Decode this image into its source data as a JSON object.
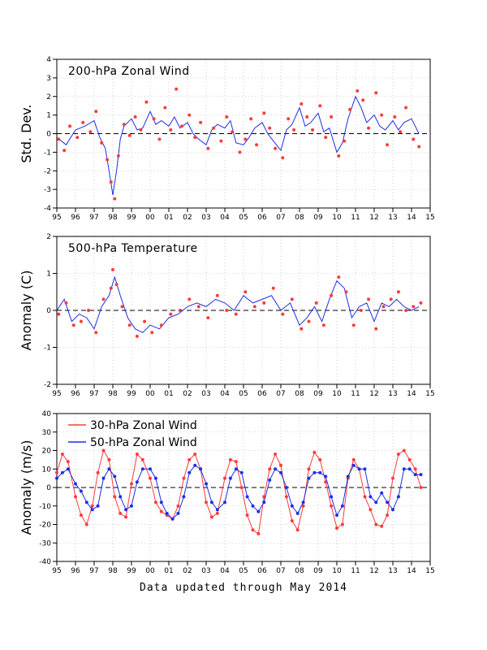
{
  "footer": "Data updated through May 2014",
  "colors": {
    "red": "#ff3b3b",
    "blue": "#1f2ee6",
    "grid": "#aaaaaa",
    "axis": "#000000"
  },
  "chart_data": [
    {
      "type": "line",
      "title": "200-hPa Zonal Wind",
      "ylabel": "Std. Dev.",
      "xlabel": "",
      "xlim": [
        95,
        115
      ],
      "ylim": [
        -4,
        4
      ],
      "xticks": [
        "95",
        "96",
        "97",
        "98",
        "99",
        "00",
        "01",
        "02",
        "03",
        "04",
        "05",
        "06",
        "07",
        "08",
        "09",
        "10",
        "11",
        "12",
        "13",
        "14",
        "15"
      ],
      "yticks": [
        -4,
        -3,
        -2,
        -1,
        0,
        1,
        2,
        3,
        4
      ],
      "grid": true,
      "zero_line": true,
      "series": [
        {
          "kind": "line",
          "color": "#1f2ee6",
          "x": [
            95.0,
            95.5,
            96.0,
            96.5,
            97.0,
            97.3,
            97.6,
            97.8,
            98.0,
            98.2,
            98.4,
            98.6,
            99.0,
            99.3,
            99.6,
            100.0,
            100.3,
            100.6,
            101.0,
            101.3,
            101.6,
            102.0,
            102.3,
            102.6,
            103.0,
            103.3,
            103.6,
            104.0,
            104.3,
            104.6,
            105.0,
            105.3,
            105.6,
            106.0,
            106.3,
            106.6,
            107.0,
            107.3,
            107.6,
            108.0,
            108.3,
            108.6,
            109.0,
            109.3,
            109.6,
            110.0,
            110.3,
            110.6,
            111.0,
            111.3,
            111.6,
            112.0,
            112.3,
            112.6,
            113.0,
            113.3,
            113.6,
            114.0,
            114.4
          ],
          "y": [
            -0.2,
            -0.6,
            0.2,
            0.4,
            0.7,
            -0.2,
            -0.8,
            -2.0,
            -3.3,
            -2.0,
            -0.3,
            0.4,
            0.8,
            0.2,
            0.3,
            1.2,
            0.5,
            0.7,
            0.4,
            0.9,
            0.3,
            0.6,
            0.0,
            -0.3,
            -0.6,
            0.2,
            0.5,
            0.3,
            0.7,
            -0.5,
            -0.6,
            -0.2,
            0.3,
            0.6,
            0.0,
            -0.4,
            -0.9,
            0.2,
            0.5,
            1.4,
            0.4,
            0.6,
            1.1,
            0.1,
            0.3,
            -1.0,
            -0.5,
            0.8,
            2.0,
            1.4,
            0.6,
            1.0,
            0.4,
            0.2,
            0.7,
            0.2,
            0.6,
            0.8,
            0.0
          ]
        },
        {
          "kind": "points",
          "color": "#ff3b3b",
          "x": [
            95.1,
            95.4,
            95.7,
            96.1,
            96.4,
            96.8,
            97.1,
            97.4,
            97.7,
            97.9,
            98.1,
            98.3,
            98.6,
            98.9,
            99.2,
            99.5,
            99.8,
            100.2,
            100.5,
            100.8,
            101.1,
            101.4,
            101.7,
            102.1,
            102.4,
            102.7,
            103.1,
            103.4,
            103.8,
            104.1,
            104.4,
            104.8,
            105.1,
            105.4,
            105.7,
            106.1,
            106.4,
            106.7,
            107.1,
            107.4,
            107.7,
            108.1,
            108.4,
            108.7,
            109.1,
            109.4,
            109.7,
            110.1,
            110.4,
            110.7,
            111.1,
            111.4,
            111.7,
            112.1,
            112.4,
            112.7,
            113.1,
            113.4,
            113.7,
            114.1,
            114.4
          ],
          "y": [
            -0.3,
            -0.9,
            0.4,
            -0.2,
            0.6,
            0.1,
            1.2,
            -0.5,
            -1.4,
            -2.6,
            -3.5,
            -1.2,
            0.5,
            -0.1,
            0.9,
            0.2,
            1.7,
            0.8,
            -0.3,
            1.4,
            0.2,
            2.4,
            0.4,
            1.0,
            -0.2,
            0.6,
            -0.8,
            0.3,
            -0.4,
            0.9,
            0.1,
            -1.0,
            -0.3,
            0.8,
            -0.6,
            1.1,
            0.3,
            -0.8,
            -1.3,
            0.8,
            0.2,
            1.6,
            0.9,
            0.2,
            1.5,
            -0.2,
            0.9,
            -1.2,
            -0.4,
            1.3,
            2.3,
            1.8,
            0.3,
            2.2,
            1.0,
            -0.6,
            0.9,
            0.1,
            1.4,
            -0.3,
            -0.7
          ]
        }
      ]
    },
    {
      "type": "line",
      "title": "500-hPa Temperature",
      "ylabel": "Anomaly (C)",
      "xlabel": "",
      "xlim": [
        95,
        115
      ],
      "ylim": [
        -2,
        2
      ],
      "xticks": [
        "95",
        "96",
        "97",
        "98",
        "99",
        "00",
        "01",
        "02",
        "03",
        "04",
        "05",
        "06",
        "07",
        "08",
        "09",
        "10",
        "11",
        "12",
        "13",
        "14",
        "15"
      ],
      "yticks": [
        -2,
        -1,
        0,
        1,
        2
      ],
      "grid": true,
      "zero_line": true,
      "series": [
        {
          "kind": "line",
          "color": "#1f2ee6",
          "x": [
            95.0,
            95.4,
            95.8,
            96.2,
            96.6,
            97.0,
            97.4,
            97.8,
            98.1,
            98.4,
            98.8,
            99.2,
            99.6,
            100.0,
            100.5,
            101.0,
            101.5,
            102.0,
            102.5,
            103.0,
            103.5,
            104.0,
            104.5,
            105.0,
            105.5,
            106.0,
            106.5,
            107.0,
            107.5,
            108.0,
            108.4,
            108.8,
            109.2,
            109.6,
            110.0,
            110.4,
            110.8,
            111.2,
            111.6,
            112.0,
            112.4,
            112.8,
            113.2,
            113.6,
            114.0,
            114.4
          ],
          "y": [
            0.0,
            0.3,
            -0.3,
            -0.1,
            -0.2,
            -0.5,
            0.1,
            0.4,
            0.9,
            0.4,
            -0.2,
            -0.5,
            -0.6,
            -0.4,
            -0.5,
            -0.2,
            -0.1,
            0.1,
            0.2,
            0.1,
            0.3,
            0.2,
            0.0,
            0.4,
            0.2,
            0.3,
            0.4,
            0.0,
            0.2,
            -0.4,
            -0.2,
            0.1,
            -0.3,
            0.3,
            0.8,
            0.6,
            -0.2,
            0.1,
            0.2,
            -0.3,
            0.2,
            0.1,
            0.3,
            0.1,
            0.0,
            0.1
          ]
        },
        {
          "kind": "points",
          "color": "#ff3b3b",
          "x": [
            95.1,
            95.5,
            95.9,
            96.3,
            96.7,
            97.1,
            97.5,
            97.9,
            98.0,
            98.2,
            98.5,
            98.9,
            99.3,
            99.7,
            100.1,
            100.6,
            101.1,
            101.6,
            102.1,
            102.6,
            103.1,
            103.6,
            104.1,
            104.6,
            105.1,
            105.6,
            106.1,
            106.6,
            107.1,
            107.6,
            108.1,
            108.5,
            108.9,
            109.3,
            109.7,
            110.1,
            110.5,
            110.9,
            111.3,
            111.7,
            112.1,
            112.5,
            112.9,
            113.3,
            113.7,
            114.1,
            114.5
          ],
          "y": [
            -0.1,
            0.2,
            -0.4,
            -0.3,
            0.0,
            -0.6,
            0.3,
            0.6,
            1.1,
            0.7,
            0.1,
            -0.4,
            -0.7,
            -0.3,
            -0.6,
            -0.4,
            -0.1,
            0.0,
            0.3,
            0.1,
            -0.2,
            0.4,
            0.0,
            -0.1,
            0.5,
            0.1,
            0.2,
            0.6,
            -0.1,
            0.3,
            -0.5,
            -0.3,
            0.2,
            -0.4,
            0.4,
            0.9,
            0.5,
            -0.4,
            0.0,
            0.3,
            -0.5,
            0.1,
            0.3,
            0.5,
            0.0,
            0.1,
            0.2
          ]
        }
      ]
    },
    {
      "type": "line",
      "title": "",
      "ylabel": "Anomaly (m/s)",
      "xlabel": "",
      "xlim": [
        95,
        115
      ],
      "ylim": [
        -40,
        40
      ],
      "xticks": [
        "95",
        "96",
        "97",
        "98",
        "99",
        "00",
        "01",
        "02",
        "03",
        "04",
        "05",
        "06",
        "07",
        "08",
        "09",
        "10",
        "11",
        "12",
        "13",
        "14",
        "15"
      ],
      "yticks": [
        -40,
        -30,
        -20,
        -10,
        0,
        10,
        20,
        30,
        40
      ],
      "grid": true,
      "zero_line": true,
      "legend": "top-left",
      "series": [
        {
          "name": "30-hPa Zonal Wind",
          "kind": "line+points",
          "color": "#ff3b3b",
          "x": [
            95.0,
            95.3,
            95.6,
            96.0,
            96.3,
            96.6,
            96.9,
            97.2,
            97.5,
            97.8,
            98.1,
            98.4,
            98.7,
            99.0,
            99.3,
            99.6,
            100.0,
            100.3,
            100.6,
            100.9,
            101.2,
            101.5,
            101.8,
            102.1,
            102.4,
            102.7,
            103.0,
            103.3,
            103.6,
            104.0,
            104.3,
            104.6,
            104.9,
            105.2,
            105.5,
            105.8,
            106.1,
            106.4,
            106.7,
            107.0,
            107.3,
            107.6,
            107.9,
            108.2,
            108.5,
            108.8,
            109.1,
            109.4,
            109.7,
            110.0,
            110.3,
            110.6,
            110.9,
            111.2,
            111.5,
            111.8,
            112.1,
            112.4,
            112.7,
            113.0,
            113.3,
            113.6,
            113.9,
            114.2,
            114.5
          ],
          "y": [
            8,
            18,
            14,
            -5,
            -15,
            -20,
            -10,
            8,
            20,
            15,
            -5,
            -14,
            -16,
            2,
            18,
            15,
            5,
            -8,
            -13,
            -15,
            -17,
            -10,
            5,
            15,
            18,
            10,
            -8,
            -16,
            -14,
            5,
            15,
            14,
            0,
            -15,
            -23,
            -25,
            -5,
            10,
            18,
            12,
            -5,
            -18,
            -23,
            -10,
            10,
            19,
            15,
            3,
            -10,
            -22,
            -20,
            5,
            15,
            10,
            -5,
            -12,
            -20,
            -21,
            -15,
            5,
            18,
            20,
            15,
            10,
            0
          ]
        },
        {
          "name": "50-hPa Zonal Wind",
          "kind": "line+points",
          "color": "#1f2ee6",
          "x": [
            95.0,
            95.3,
            95.6,
            96.0,
            96.3,
            96.6,
            96.9,
            97.2,
            97.5,
            97.8,
            98.1,
            98.4,
            98.7,
            99.0,
            99.3,
            99.6,
            100.0,
            100.3,
            100.6,
            100.9,
            101.2,
            101.5,
            101.8,
            102.1,
            102.4,
            102.7,
            103.0,
            103.3,
            103.6,
            104.0,
            104.3,
            104.6,
            104.9,
            105.2,
            105.5,
            105.8,
            106.1,
            106.4,
            106.7,
            107.0,
            107.3,
            107.6,
            107.9,
            108.2,
            108.5,
            108.8,
            109.1,
            109.4,
            109.7,
            110.0,
            110.3,
            110.6,
            110.9,
            111.2,
            111.5,
            111.8,
            112.1,
            112.4,
            112.7,
            113.0,
            113.3,
            113.6,
            113.9,
            114.2,
            114.5
          ],
          "y": [
            5,
            8,
            10,
            2,
            -2,
            -8,
            -12,
            -10,
            5,
            10,
            6,
            -5,
            -12,
            -10,
            3,
            10,
            10,
            5,
            -8,
            -14,
            -17,
            -14,
            -5,
            8,
            12,
            10,
            2,
            -8,
            -12,
            -8,
            5,
            10,
            8,
            -5,
            -10,
            -13,
            -8,
            4,
            10,
            8,
            0,
            -10,
            -14,
            -8,
            5,
            8,
            8,
            6,
            -5,
            -15,
            -10,
            6,
            12,
            10,
            10,
            -5,
            -8,
            -3,
            -8,
            -12,
            -5,
            10,
            10,
            7,
            7
          ]
        }
      ]
    }
  ]
}
